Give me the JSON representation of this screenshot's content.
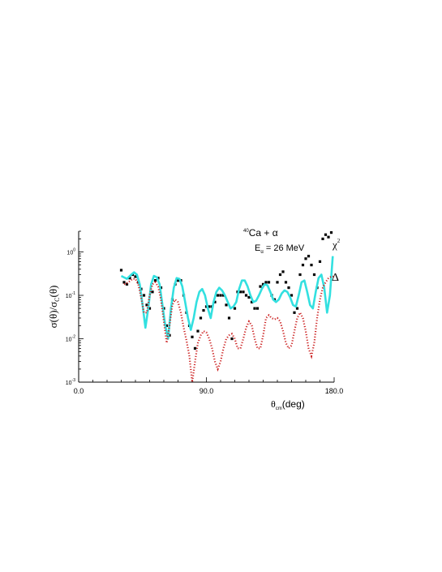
{
  "chart_data": {
    "type": "scatter",
    "title": "",
    "xlabel": {
      "main": "θ",
      "sub": "cm",
      "unit": "(deg)"
    },
    "ylabel": {
      "sigma_num": "σ(θ)/σ",
      "sub": "C",
      "tail": "(θ)"
    },
    "xlim": [
      0,
      180
    ],
    "ylim": [
      0.001,
      3
    ],
    "yscale": "log",
    "x_tick_labels": [
      {
        "value": 0,
        "label": "0.0"
      },
      {
        "value": 90,
        "label": "90.0"
      },
      {
        "value": 180,
        "label": "180.0"
      }
    ],
    "y_tick_labels": [
      {
        "value": 1,
        "base": "10",
        "exp": "0"
      },
      {
        "value": 0.1,
        "base": "10",
        "exp": "-1"
      },
      {
        "value": 0.01,
        "base": "10",
        "exp": "-2"
      },
      {
        "value": 0.001,
        "base": "10",
        "exp": "-3"
      }
    ],
    "annotations": {
      "reaction_sup": "40",
      "reaction_text": "Ca + α",
      "energy_main": "E",
      "energy_sub": "α",
      "energy_tail": " = 26 MeV",
      "chi_label": "χ",
      "chi_sup": "2",
      "delta_label": "Δ"
    },
    "series": [
      {
        "style": "markers",
        "color": "#000000",
        "x": [
          30,
          32,
          34,
          36,
          38,
          40,
          42,
          44,
          46,
          48,
          50,
          52,
          54,
          56,
          58,
          60,
          62,
          64,
          66,
          68,
          70,
          72,
          74,
          76,
          78,
          80,
          82,
          84,
          86,
          88,
          90,
          92,
          94,
          96,
          98,
          100,
          102,
          104,
          106,
          108,
          110,
          112,
          114,
          116,
          118,
          120,
          122,
          124,
          126,
          128,
          130,
          132,
          134,
          136,
          138,
          140,
          142,
          144,
          146,
          148,
          150,
          152,
          154,
          156,
          158,
          160,
          162,
          164,
          166,
          168,
          170,
          172,
          174,
          176,
          178
        ],
        "values": [
          0.38,
          0.2,
          0.18,
          0.25,
          0.3,
          0.27,
          0.2,
          0.14,
          0.1,
          0.06,
          0.05,
          0.12,
          0.22,
          0.25,
          0.15,
          0.05,
          0.02,
          0.012,
          0.08,
          0.18,
          0.22,
          0.22,
          0.1,
          0.04,
          0.02,
          0.011,
          0.006,
          0.015,
          0.03,
          0.045,
          0.055,
          0.055,
          0.055,
          0.07,
          0.1,
          0.1,
          0.1,
          0.06,
          0.03,
          0.01,
          0.05,
          0.12,
          0.12,
          0.12,
          0.1,
          0.09,
          0.07,
          0.05,
          0.05,
          0.16,
          0.18,
          0.2,
          0.2,
          0.1,
          0.08,
          0.2,
          0.3,
          0.35,
          0.2,
          0.15,
          0.1,
          0.04,
          0.05,
          0.3,
          0.5,
          0.7,
          0.8,
          0.5,
          0.3,
          0.15,
          0.6,
          2.0,
          2.5,
          2.2,
          2.8
        ]
      },
      {
        "name": "χ²",
        "style": "solid",
        "color": "#33e0e0",
        "x": [
          30,
          34,
          37,
          39,
          41,
          43,
          45,
          47,
          49,
          51,
          53,
          55,
          57,
          59,
          61,
          63,
          65,
          67,
          69,
          71,
          73,
          75,
          77,
          79,
          81,
          83,
          85,
          87,
          89,
          91,
          93,
          95,
          97,
          99,
          101,
          103,
          105,
          107,
          109,
          111,
          113,
          115,
          117,
          119,
          121,
          123,
          125,
          127,
          129,
          131,
          133,
          135,
          137,
          139,
          141,
          143,
          145,
          147,
          149,
          151,
          153,
          155,
          157,
          159,
          161,
          163,
          165,
          167,
          169,
          171,
          173,
          175,
          177,
          179
        ],
        "values": [
          0.28,
          0.24,
          0.3,
          0.34,
          0.3,
          0.18,
          0.06,
          0.018,
          0.05,
          0.18,
          0.28,
          0.26,
          0.18,
          0.06,
          0.02,
          0.01,
          0.05,
          0.15,
          0.25,
          0.24,
          0.16,
          0.07,
          0.03,
          0.016,
          0.03,
          0.07,
          0.12,
          0.14,
          0.1,
          0.05,
          0.03,
          0.07,
          0.12,
          0.15,
          0.13,
          0.1,
          0.07,
          0.05,
          0.055,
          0.07,
          0.14,
          0.22,
          0.22,
          0.16,
          0.1,
          0.07,
          0.075,
          0.1,
          0.14,
          0.18,
          0.17,
          0.12,
          0.08,
          0.07,
          0.08,
          0.11,
          0.13,
          0.12,
          0.09,
          0.06,
          0.055,
          0.1,
          0.2,
          0.22,
          0.12,
          0.06,
          0.05,
          0.12,
          0.25,
          0.3,
          0.15,
          0.04,
          0.1,
          0.8
        ]
      },
      {
        "name": "Δ",
        "style": "dotted",
        "color": "#cc2222",
        "x": [
          32,
          35,
          38,
          40,
          42,
          44,
          46,
          48,
          50,
          52,
          54,
          56,
          58,
          60,
          62,
          64,
          66,
          68,
          70,
          72,
          74,
          76,
          78,
          80,
          82,
          84,
          86,
          88,
          90,
          92,
          94,
          96,
          98,
          100,
          102,
          104,
          106,
          108,
          110,
          112,
          114,
          116,
          118,
          120,
          122,
          124,
          126,
          128,
          130,
          132,
          134,
          136,
          138,
          140,
          142,
          144,
          146,
          148,
          150,
          152,
          154,
          156,
          158,
          160,
          162,
          164,
          166,
          168,
          170,
          172,
          174,
          176,
          178,
          180
        ],
        "values": [
          0.18,
          0.2,
          0.24,
          0.24,
          0.18,
          0.09,
          0.04,
          0.04,
          0.1,
          0.18,
          0.2,
          0.16,
          0.08,
          0.025,
          0.008,
          0.02,
          0.06,
          0.08,
          0.07,
          0.04,
          0.018,
          0.009,
          0.004,
          0.001,
          0.003,
          0.008,
          0.012,
          0.015,
          0.014,
          0.01,
          0.006,
          0.003,
          0.002,
          0.003,
          0.006,
          0.01,
          0.012,
          0.013,
          0.01,
          0.006,
          0.006,
          0.01,
          0.018,
          0.025,
          0.02,
          0.01,
          0.006,
          0.006,
          0.012,
          0.03,
          0.035,
          0.03,
          0.028,
          0.03,
          0.025,
          0.015,
          0.008,
          0.006,
          0.007,
          0.015,
          0.03,
          0.04,
          0.03,
          0.015,
          0.006,
          0.004,
          0.008,
          0.03,
          0.08,
          0.15,
          0.2,
          0.25,
          0.27,
          0.27
        ]
      }
    ]
  }
}
